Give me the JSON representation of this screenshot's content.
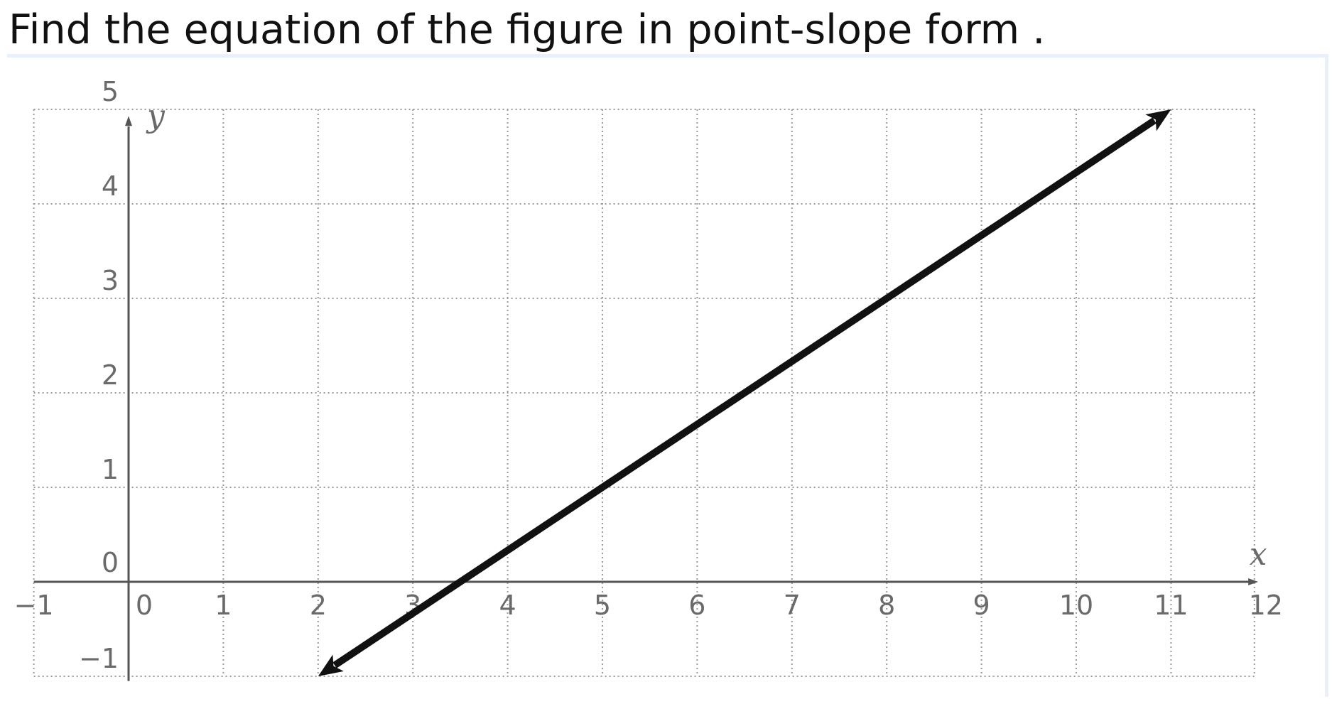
{
  "question": {
    "text": "Find the equation of the figure in point-slope form ."
  },
  "chart_data": {
    "type": "line",
    "title": "",
    "xlabel": "x",
    "ylabel": "y",
    "xlim": [
      -1,
      12
    ],
    "ylim": [
      -1,
      5
    ],
    "grid": true,
    "x_ticks": [
      -1,
      0,
      1,
      2,
      3,
      4,
      5,
      6,
      7,
      8,
      9,
      10,
      11,
      12
    ],
    "y_ticks": [
      -1,
      0,
      1,
      2,
      3,
      4,
      5
    ],
    "x_tick_labels": [
      "−1",
      "0",
      "1",
      "2",
      "3",
      "4",
      "5",
      "6",
      "7",
      "8",
      "9",
      "10",
      "11",
      "12"
    ],
    "y_tick_labels": [
      "−1",
      "0",
      "1",
      "2",
      "3",
      "4",
      "5"
    ],
    "series": [
      {
        "x": [
          2,
          11
        ],
        "y": [
          -1,
          5
        ],
        "arrows": "both",
        "color": "#111111"
      }
    ]
  }
}
